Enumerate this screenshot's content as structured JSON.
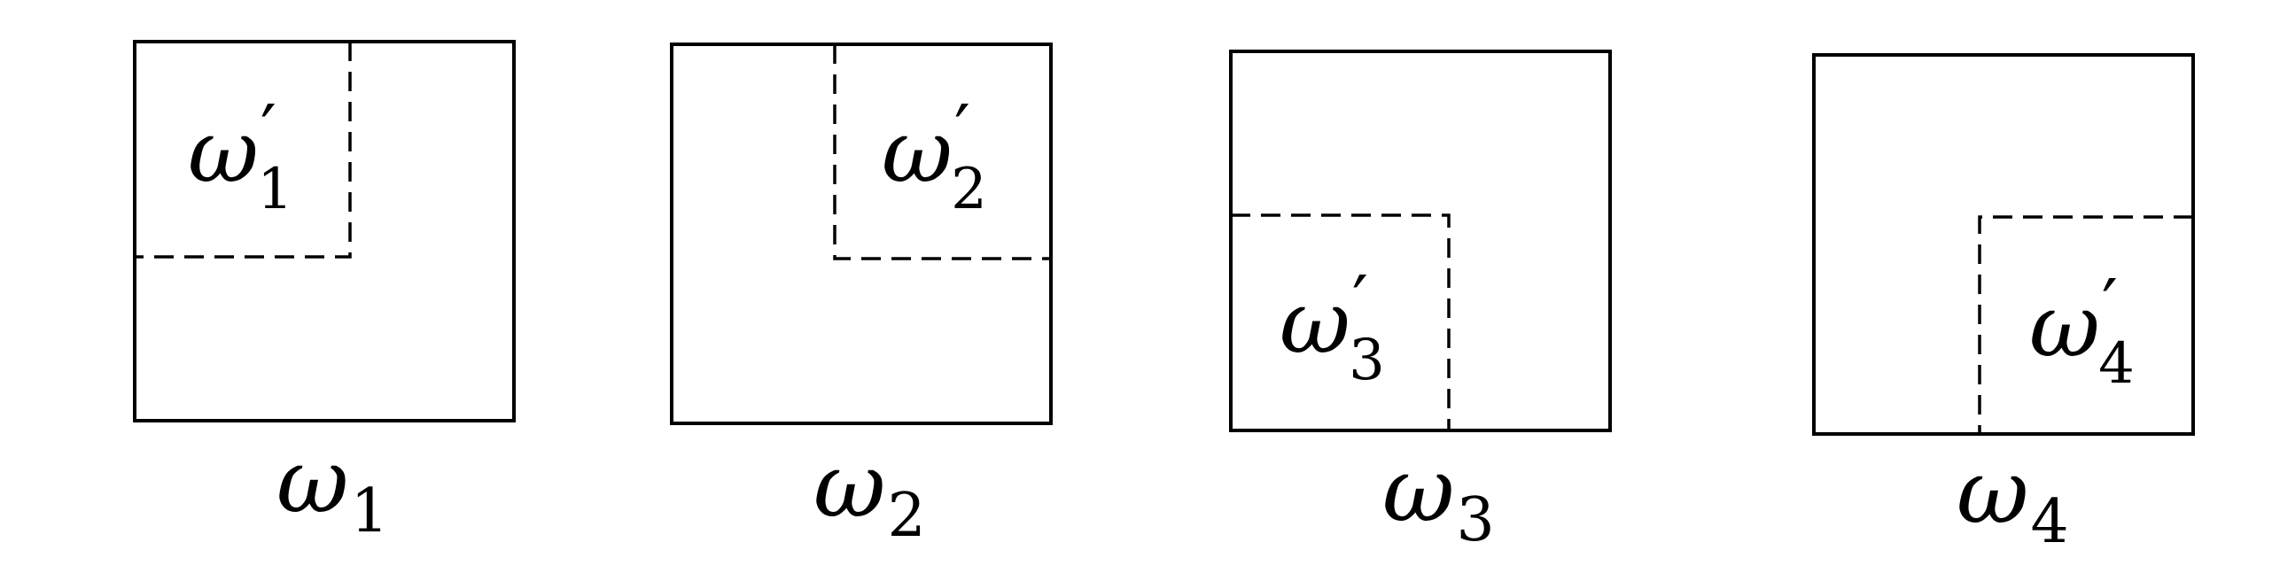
{
  "panels": [
    {
      "symbol": "ω",
      "index": "1",
      "prime": "′",
      "corner": "top-left"
    },
    {
      "symbol": "ω",
      "index": "2",
      "prime": "′",
      "corner": "top-right"
    },
    {
      "symbol": "ω",
      "index": "3",
      "prime": "′",
      "corner": "bottom-left"
    },
    {
      "symbol": "ω",
      "index": "4",
      "prime": "′",
      "corner": "bottom-right"
    }
  ]
}
